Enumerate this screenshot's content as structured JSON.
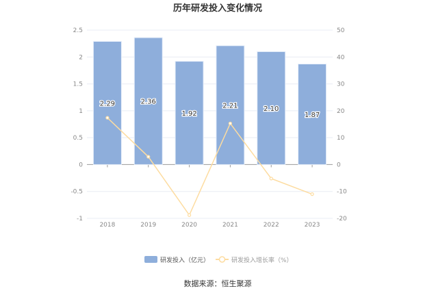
{
  "chart_data": {
    "type": "bar+line",
    "title": "历年研发投入变化情况",
    "categories": [
      "2018",
      "2019",
      "2020",
      "2021",
      "2022",
      "2023"
    ],
    "series": [
      {
        "name": "研发投入（亿元）",
        "type": "bar",
        "axis": "left",
        "values": [
          2.29,
          2.36,
          1.92,
          2.21,
          2.1,
          1.87
        ],
        "labels": [
          "2.29",
          "2.36",
          "1.92",
          "2.21",
          "2.10",
          "1.87"
        ],
        "color": "#8eaedb"
      },
      {
        "name": "研发投入增长率（%）",
        "type": "line",
        "axis": "right",
        "values": [
          17.4,
          2.9,
          -18.8,
          15.3,
          -5.2,
          -11.0
        ],
        "color": "#fddca0"
      }
    ],
    "left_axis": {
      "ylim": [
        -1,
        2.5
      ],
      "ticks": [
        "2.5",
        "2",
        "1.5",
        "1",
        "0.5",
        "0",
        "-0.5",
        "-1"
      ]
    },
    "right_axis": {
      "ylim": [
        -20,
        50
      ],
      "ticks": [
        "50",
        "40",
        "30",
        "20",
        "10",
        "0",
        "-10",
        "-20"
      ]
    },
    "grid": true,
    "legend_position": "bottom"
  },
  "source": "数据来源：恒生聚源"
}
